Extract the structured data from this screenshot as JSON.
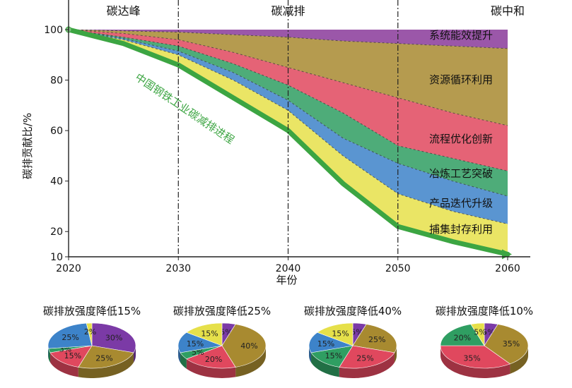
{
  "chart_data": [
    {
      "type": "area",
      "xlabel": "年份",
      "ylabel": "碳排贡献比/%",
      "xlim": [
        2020,
        2060
      ],
      "ylim": [
        10,
        100
      ],
      "x_ticks": [
        "2020",
        "2030",
        "2040",
        "2050",
        "2060"
      ],
      "y_ticks": [
        "10",
        "20",
        "40",
        "60",
        "80",
        "100"
      ],
      "phases": [
        {
          "label": "碳达峰",
          "x": 2025
        },
        {
          "label": "碳减排",
          "x": 2040
        },
        {
          "label": "碳中和",
          "x": 2060
        }
      ],
      "divider_years": [
        2030,
        2040,
        2050
      ],
      "x": [
        2020,
        2025,
        2030,
        2035,
        2040,
        2045,
        2050,
        2055,
        2060
      ],
      "series": [
        {
          "name": "系统能效提升",
          "color": "#8a3a9a",
          "upper": [
            100,
            100,
            100,
            100,
            100,
            100,
            100,
            100,
            100
          ]
        },
        {
          "name": "资源循环利用",
          "color": "#a88a30",
          "upper": [
            100,
            99.5,
            99,
            98,
            97,
            95.5,
            94.5,
            93.5,
            92.5
          ]
        },
        {
          "name": "流程优化创新",
          "color": "#e0485e",
          "upper": [
            100,
            98.5,
            96,
            91,
            85,
            79,
            73,
            67,
            62
          ]
        },
        {
          "name": "冶炼工艺突破",
          "color": "#2f9e62",
          "upper": [
            100,
            97,
            93.5,
            86.5,
            78,
            67,
            54,
            49,
            44
          ]
        },
        {
          "name": "产品迭代升级",
          "color": "#3d83c9",
          "upper": [
            100,
            96.5,
            91.5,
            83,
            72,
            57,
            47,
            40,
            34
          ]
        },
        {
          "name": "捕集封存利用",
          "color": "#e6e04a",
          "upper": [
            100,
            96,
            90,
            80,
            68,
            50,
            35,
            28,
            23
          ]
        }
      ],
      "process_line": {
        "name": "中国钢铁工业碳减排进程",
        "color": "#3ca542",
        "values": [
          100,
          94.5,
          86,
          73,
          60,
          39,
          22,
          16,
          11
        ]
      }
    },
    {
      "type": "pie",
      "title": "碳排放强度降低15%",
      "slices": [
        {
          "label": "30%",
          "value": 30,
          "color": "#7b3aa6"
        },
        {
          "label": "25%",
          "value": 25,
          "color": "#a88a30"
        },
        {
          "label": "15%",
          "value": 15,
          "color": "#e0485e"
        },
        {
          "label": "3%",
          "value": 3,
          "color": "#2f9e62"
        },
        {
          "label": "25%",
          "value": 25,
          "color": "#3d83c9"
        },
        {
          "label": "2%",
          "value": 2,
          "color": "#e6e04a"
        }
      ]
    },
    {
      "type": "pie",
      "title": "碳排放强度降低25%",
      "slices": [
        {
          "label": "5%",
          "value": 5,
          "color": "#7b3aa6"
        },
        {
          "label": "40%",
          "value": 40,
          "color": "#a88a30"
        },
        {
          "label": "20%",
          "value": 20,
          "color": "#e0485e"
        },
        {
          "label": "5%",
          "value": 5,
          "color": "#2f9e62"
        },
        {
          "label": "15%",
          "value": 15,
          "color": "#3d83c9"
        },
        {
          "label": "15%",
          "value": 15,
          "color": "#e6e04a"
        }
      ]
    },
    {
      "type": "pie",
      "title": "碳排放强度降低40%",
      "slices": [
        {
          "label": "5%",
          "value": 5,
          "color": "#7b3aa6"
        },
        {
          "label": "25%",
          "value": 25,
          "color": "#a88a30"
        },
        {
          "label": "25%",
          "value": 25,
          "color": "#e0485e"
        },
        {
          "label": "15%",
          "value": 15,
          "color": "#2f9e62"
        },
        {
          "label": "15%",
          "value": 15,
          "color": "#3d83c9"
        },
        {
          "label": "15%",
          "value": 15,
          "color": "#e6e04a"
        }
      ]
    },
    {
      "type": "pie",
      "title": "碳排放强度降低10%",
      "slices": [
        {
          "label": "5%",
          "value": 5,
          "color": "#7b3aa6"
        },
        {
          "label": "35%",
          "value": 35,
          "color": "#a88a30"
        },
        {
          "label": "35%",
          "value": 35,
          "color": "#e0485e"
        },
        {
          "label": "20%",
          "value": 20,
          "color": "#2f9e62"
        },
        {
          "label": "5%",
          "value": 5,
          "color": "#e6e04a"
        }
      ]
    }
  ]
}
